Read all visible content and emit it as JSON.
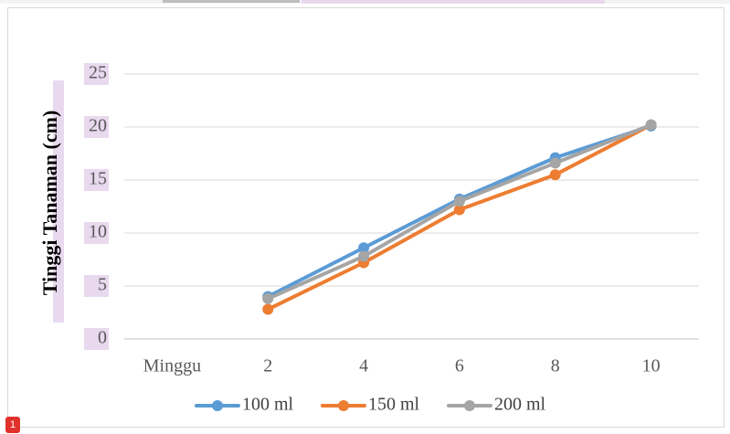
{
  "badge": {
    "label": "1"
  },
  "chart_data": {
    "type": "line",
    "title": "",
    "xlabel": "",
    "ylabel": "Tinggi Tanaman (cm)",
    "categories": [
      "Minggu",
      "2",
      "4",
      "6",
      "8",
      "10"
    ],
    "yticks": [
      "0",
      "5",
      "10",
      "15",
      "20",
      "25"
    ],
    "ylim": [
      0,
      25
    ],
    "grid": true,
    "legend_position": "bottom",
    "series": [
      {
        "name": "100 ml",
        "color": "#5b9bd5",
        "values": [
          null,
          4.0,
          8.6,
          13.2,
          17.1,
          20.1
        ]
      },
      {
        "name": "150 ml",
        "color": "#ed7d31",
        "values": [
          null,
          2.8,
          7.2,
          12.2,
          15.5,
          20.2
        ]
      },
      {
        "name": "200 ml",
        "color": "#a5a5a5",
        "values": [
          null,
          3.8,
          7.8,
          13.0,
          16.6,
          20.2
        ]
      }
    ]
  }
}
